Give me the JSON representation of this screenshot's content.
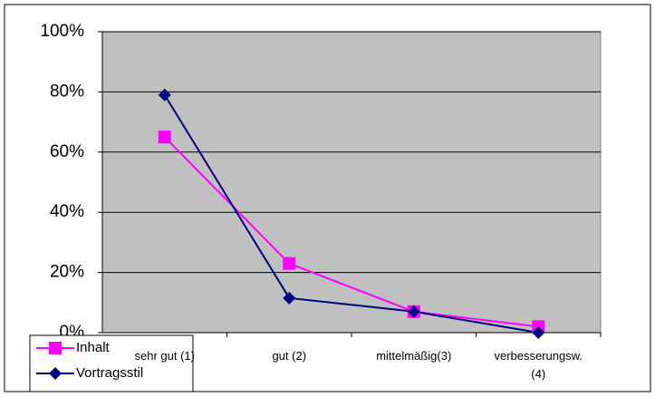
{
  "chart_data": {
    "type": "line",
    "categories": [
      "sehr gut (1)",
      "gut (2)",
      "mittelmäßig(3)",
      "verbesserungsw. (4)"
    ],
    "series": [
      {
        "name": "Inhalt",
        "color": "#ff00ff",
        "marker": "square",
        "values": [
          65,
          23,
          7,
          2
        ]
      },
      {
        "name": "Vortragsstil",
        "color": "#000080",
        "marker": "diamond",
        "values": [
          79,
          11.5,
          7,
          0
        ]
      }
    ],
    "ylim": [
      0,
      100
    ],
    "yticks": [
      {
        "value": 0,
        "label": "0%"
      },
      {
        "value": 20,
        "label": "20%"
      },
      {
        "value": 40,
        "label": "40%"
      },
      {
        "value": 60,
        "label": "60%"
      },
      {
        "value": 80,
        "label": "80%"
      },
      {
        "value": 100,
        "label": "100%"
      }
    ],
    "grid": true,
    "plot_background": "#c0c0c0",
    "legend": "bottom-left"
  }
}
